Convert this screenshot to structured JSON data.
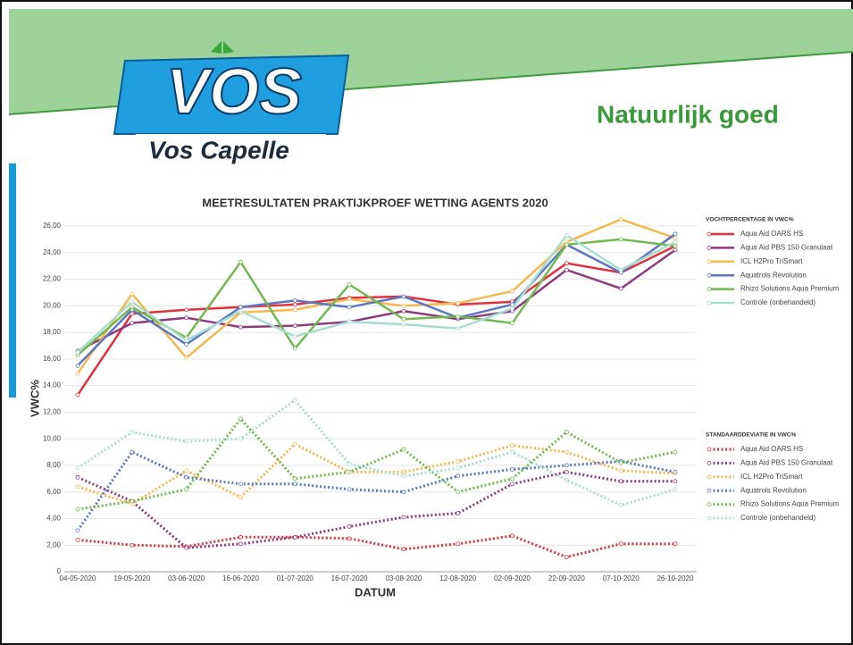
{
  "header": {
    "logo": "VOS",
    "brand": "Vos Capelle",
    "slogan": "Natuurlijk goed"
  },
  "chart_data": {
    "type": "line",
    "title": "MEETRESULTATEN PRAKTIJKPROEF WETTING AGENTS 2020",
    "x_label": "DATUM",
    "y_label": "VWC%",
    "categories": [
      "04-05-2020",
      "19-05-2020",
      "03-06-2020",
      "16-06-2020",
      "01-07-2020",
      "16-07-2020",
      "03-08-2020",
      "12-08-2020",
      "02-09-2020",
      "22-09-2020",
      "07-10-2020",
      "26-10-2020"
    ],
    "ylim": [
      0,
      26
    ],
    "yticks": [
      0,
      {
        "value": 2,
        "label": "2,00"
      },
      {
        "value": 4,
        "label": "4,00"
      },
      {
        "value": 6,
        "label": "6,00"
      },
      {
        "value": 8,
        "label": "8,00"
      },
      {
        "value": 10,
        "label": "10,00"
      },
      {
        "value": 12,
        "label": "12,00"
      },
      {
        "value": 14,
        "label": "14,00"
      },
      {
        "value": 16,
        "label": "16,00"
      },
      {
        "value": 18,
        "label": "18,00"
      },
      {
        "value": 20,
        "label": "20,00"
      },
      {
        "value": 22,
        "label": "22,00"
      },
      {
        "value": 24,
        "label": "24,00"
      },
      {
        "value": 26,
        "label": "26,00"
      }
    ],
    "grid": true,
    "legend_titles": [
      "VOCHTPERCENTAGE IN VWC%",
      "STANDAARDDEVIATIE IN VWC%"
    ],
    "series": [
      {
        "name": "Aqua Aid OARS HS",
        "color": "#e0313f",
        "group": 0,
        "dashed": false,
        "values": [
          13.3,
          19.4,
          19.7,
          19.9,
          20.1,
          20.6,
          20.7,
          20.1,
          20.3,
          23.2,
          22.5,
          24.5
        ]
      },
      {
        "name": "Aqua Aid PBS 150 Granulaat",
        "color": "#8e3a7e",
        "group": 0,
        "dashed": false,
        "values": [
          16.6,
          18.7,
          19.1,
          18.4,
          18.5,
          18.8,
          19.6,
          19.0,
          19.6,
          22.7,
          21.3,
          24.2
        ]
      },
      {
        "name": "ICL H2Pro TriSmart",
        "color": "#f6b84e",
        "group": 0,
        "dashed": false,
        "values": [
          14.9,
          20.9,
          16.1,
          19.5,
          19.7,
          20.5,
          20.0,
          20.2,
          21.1,
          24.8,
          26.5,
          25.1
        ]
      },
      {
        "name": "Aquatrols Revolution",
        "color": "#5b78c4",
        "group": 0,
        "dashed": false,
        "values": [
          15.5,
          19.7,
          17.1,
          19.9,
          20.4,
          19.9,
          20.7,
          19.1,
          20.1,
          24.6,
          22.5,
          25.4
        ]
      },
      {
        "name": "Rhizo Solutions Aqua Premium",
        "color": "#72b94f",
        "group": 0,
        "dashed": false,
        "values": [
          16.3,
          19.9,
          17.6,
          23.3,
          16.8,
          21.6,
          19.0,
          19.2,
          18.7,
          24.6,
          25.0,
          24.5
        ]
      },
      {
        "name": "Controle (onbehandeld)",
        "color": "#a9dcd0",
        "group": 0,
        "dashed": false,
        "values": [
          16.5,
          20.3,
          17.4,
          19.6,
          17.7,
          18.8,
          18.6,
          18.3,
          19.8,
          25.3,
          22.7,
          24.8
        ]
      },
      {
        "name": "Aqua Aid OARS HS",
        "color": "#e0313f",
        "group": 1,
        "dashed": true,
        "values": [
          2.4,
          2.0,
          1.9,
          2.6,
          2.6,
          2.5,
          1.7,
          2.1,
          2.7,
          1.1,
          2.1,
          2.1
        ]
      },
      {
        "name": "Aqua Aid PBS 150 Granulaat",
        "color": "#8e3a7e",
        "group": 1,
        "dashed": true,
        "values": [
          7.1,
          5.3,
          1.8,
          2.1,
          2.6,
          3.4,
          4.1,
          4.4,
          6.6,
          7.5,
          6.8,
          6.8
        ]
      },
      {
        "name": "ICL H2Pro TriSmart",
        "color": "#f6b84e",
        "group": 1,
        "dashed": true,
        "values": [
          6.4,
          5.1,
          7.6,
          5.6,
          9.6,
          7.5,
          7.5,
          8.3,
          9.5,
          9.0,
          7.6,
          7.4
        ]
      },
      {
        "name": "Aquatrols Revolution",
        "color": "#5b78c4",
        "group": 1,
        "dashed": true,
        "values": [
          3.1,
          9.0,
          7.1,
          6.6,
          6.6,
          6.2,
          6.0,
          7.2,
          7.7,
          8.0,
          8.3,
          7.5
        ]
      },
      {
        "name": "Rhizo Solutions Aqua Premium",
        "color": "#72b94f",
        "group": 1,
        "dashed": true,
        "values": [
          4.7,
          5.3,
          6.2,
          11.5,
          7.0,
          7.5,
          9.2,
          6.0,
          7.0,
          10.5,
          8.2,
          9.0
        ]
      },
      {
        "name": "Controle (onbehandeld)",
        "color": "#a9dcd0",
        "group": 1,
        "dashed": true,
        "values": [
          7.8,
          10.5,
          9.8,
          10.0,
          12.9,
          8.1,
          7.2,
          7.8,
          9.0,
          6.9,
          5.0,
          6.2
        ]
      }
    ]
  }
}
